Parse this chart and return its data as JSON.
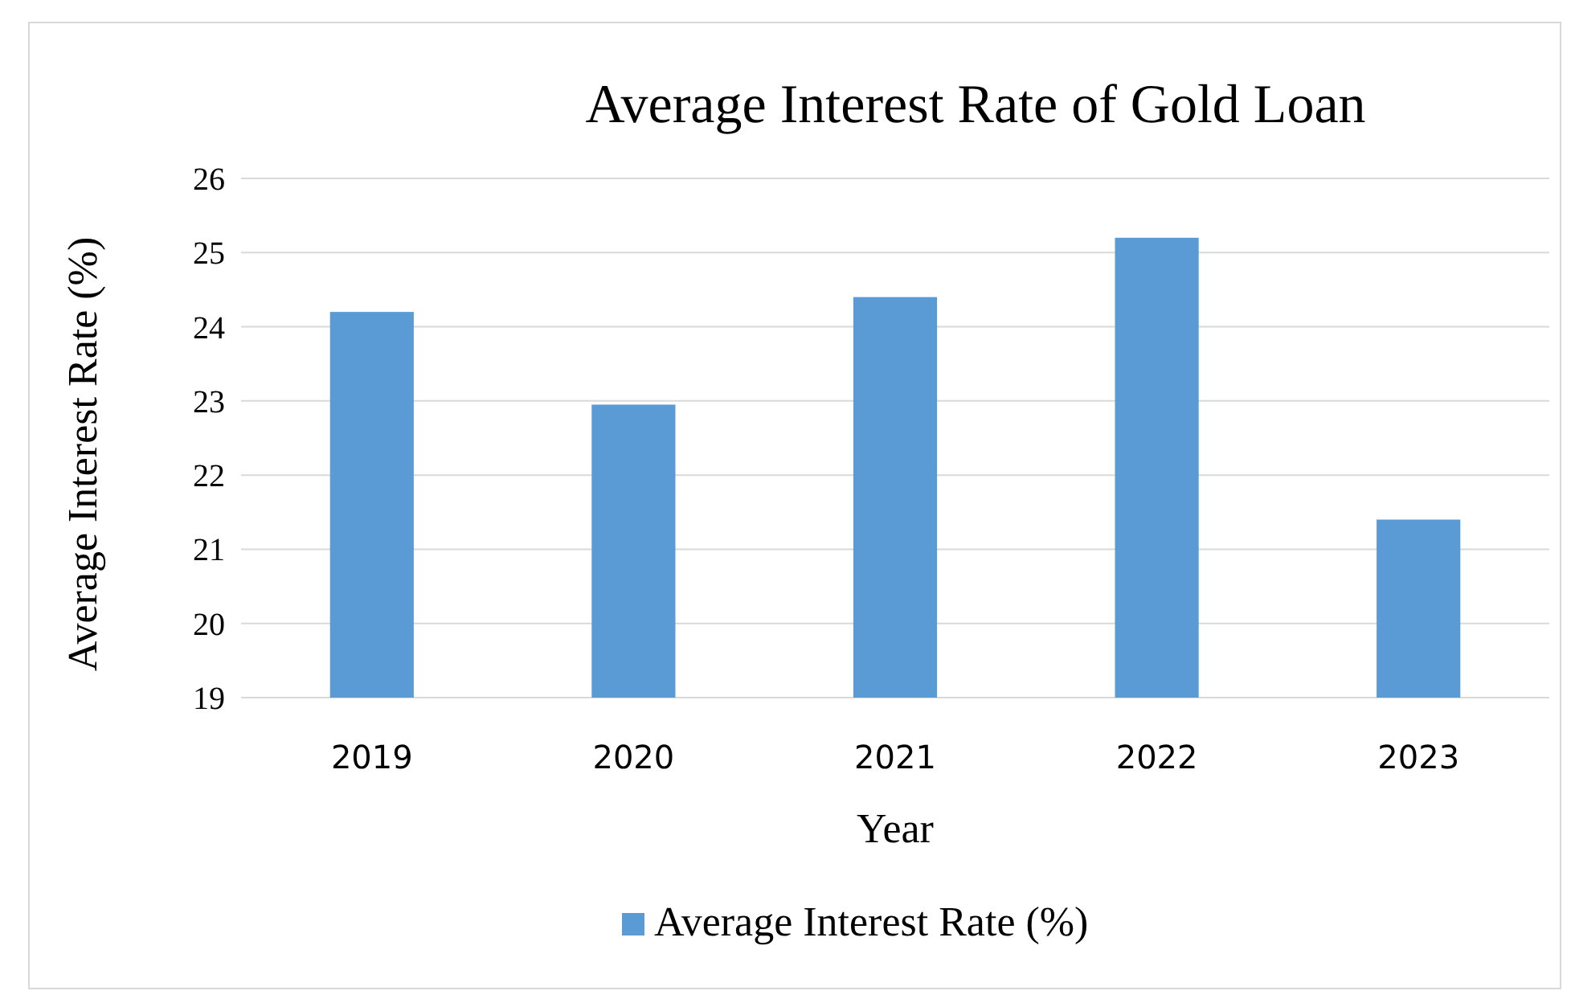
{
  "chart_data": {
    "type": "bar",
    "title": "Average Interest Rate of Gold Loan",
    "xlabel": "Year",
    "ylabel": "Average Interest Rate (%)",
    "categories": [
      "2019",
      "2020",
      "2021",
      "2022",
      "2023"
    ],
    "series": [
      {
        "name": "Average Interest Rate (%)",
        "color": "#5b9bd5",
        "values": [
          24.2,
          22.95,
          24.4,
          25.2,
          21.4
        ]
      }
    ],
    "ylim": [
      19,
      26
    ],
    "yticks": [
      19,
      20,
      21,
      22,
      23,
      24,
      25,
      26
    ],
    "grid": "y",
    "legend": "bottom"
  }
}
